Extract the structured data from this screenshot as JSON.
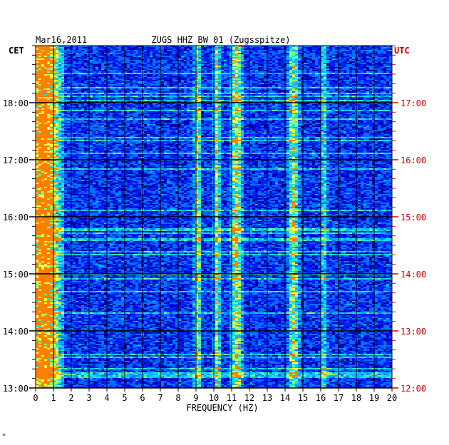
{
  "header": {
    "date": "Mar16,2011",
    "station": "ZUGS HHZ BW 01 (Zugsspitze)",
    "left_tz": "CET",
    "right_tz": "UTC"
  },
  "footnote": "*",
  "colors": {
    "background": "#0000a8",
    "grid": "#000000",
    "right_axis": "#cc0000",
    "colormap": [
      "#00008b",
      "#0000cd",
      "#0020ff",
      "#0070ff",
      "#00b8ff",
      "#20e0e0",
      "#80ff80",
      "#ffff40",
      "#ff8000"
    ]
  },
  "chart_data": {
    "type": "heatmap",
    "title": "ZUGS HHZ BW 01 (Zugsspitze)",
    "date": "Mar16,2011",
    "xlabel": "FREQUENCY (HZ)",
    "xlim": [
      0,
      20
    ],
    "x_ticks": [
      "0",
      "1",
      "2",
      "3",
      "4",
      "5",
      "6",
      "7",
      "8",
      "9",
      "10",
      "11",
      "12",
      "13",
      "14",
      "15",
      "16",
      "17",
      "18",
      "19",
      "20"
    ],
    "left_axis_label": "CET",
    "left_ticks": [
      "13:00",
      "14:00",
      "15:00",
      "16:00",
      "17:00",
      "18:00"
    ],
    "right_axis_label": "UTC",
    "right_ticks": [
      "12:00",
      "13:00",
      "14:00",
      "15:00",
      "16:00",
      "17:00"
    ],
    "time_range_cet": [
      "13:00",
      "18:50"
    ],
    "minor_tick_minutes": 10,
    "grid": true,
    "energy_bands_hz": [
      {
        "center": 0.4,
        "width": 0.6,
        "strength": 0.95
      },
      {
        "center": 9.0,
        "width": 0.12,
        "strength": 0.6
      },
      {
        "center": 10.1,
        "width": 0.12,
        "strength": 0.55
      },
      {
        "center": 11.2,
        "width": 0.2,
        "strength": 0.6
      },
      {
        "center": 14.4,
        "width": 0.2,
        "strength": 0.5
      },
      {
        "center": 16.1,
        "width": 0.12,
        "strength": 0.35
      }
    ]
  }
}
